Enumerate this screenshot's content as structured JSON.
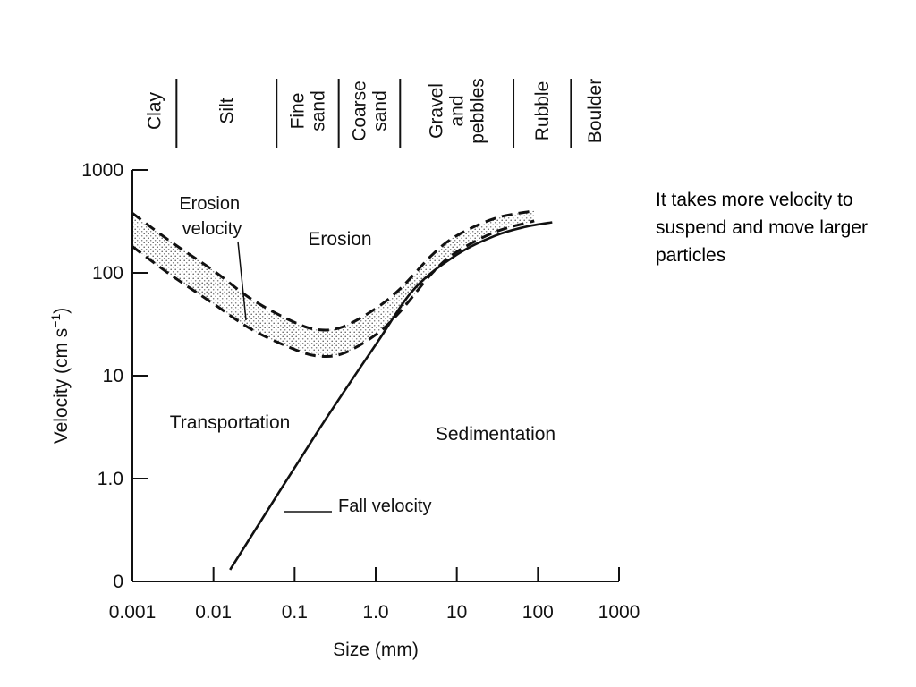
{
  "note": "It takes more velocity to suspend and move larger particles",
  "chart_data": {
    "type": "line",
    "title": "",
    "xlabel": "Size (mm)",
    "ylabel": "Velocity  (cm s",
    "ylabel_sup": "−1",
    "ylabel_close": ")",
    "x_scale": "log",
    "y_scale": "log",
    "xlim": [
      0.001,
      1000
    ],
    "ylim": [
      0,
      1000
    ],
    "x_ticks": [
      0.001,
      0.01,
      0.1,
      1.0,
      10,
      100,
      1000
    ],
    "x_tick_labels": [
      "0.001",
      "0.01",
      "0.1",
      "1.0",
      "10",
      "100",
      "1000"
    ],
    "y_ticks": [
      0.1,
      1,
      10,
      100,
      1000
    ],
    "y_tick_labels": [
      "0",
      "1.0",
      "10",
      "100",
      "1000"
    ],
    "grid": false,
    "series": [
      {
        "name": "Erosion velocity",
        "style": "dashed",
        "role": "upper",
        "x": [
          0.001,
          0.003,
          0.01,
          0.03,
          0.1,
          0.2,
          0.4,
          1,
          2,
          5,
          10,
          30,
          90
        ],
        "y": [
          380,
          200,
          105,
          55,
          33,
          28,
          30,
          45,
          70,
          150,
          230,
          340,
          400
        ]
      },
      {
        "name": "Erosion velocity",
        "style": "dashed",
        "role": "lower",
        "x": [
          0.001,
          0.003,
          0.01,
          0.03,
          0.1,
          0.2,
          0.4,
          1,
          2,
          5,
          10,
          30,
          90
        ],
        "y": [
          180,
          95,
          50,
          28,
          18,
          15.5,
          16.5,
          25,
          42,
          100,
          160,
          250,
          320
        ]
      },
      {
        "name": "Fall velocity",
        "style": "solid",
        "x": [
          0.016,
          0.2,
          1,
          3,
          10,
          30,
          70,
          150
        ],
        "y": [
          0.13,
          3,
          20,
          70,
          150,
          230,
          280,
          310
        ]
      }
    ],
    "size_classes": [
      {
        "lines": [
          "Clay"
        ],
        "from": 0.001,
        "to": 0.0035
      },
      {
        "lines": [
          "Silt"
        ],
        "from": 0.0035,
        "to": 0.06
      },
      {
        "lines": [
          "Fine",
          "sand"
        ],
        "from": 0.06,
        "to": 0.35
      },
      {
        "lines": [
          "Coarse",
          "sand"
        ],
        "from": 0.35,
        "to": 2
      },
      {
        "lines": [
          "Gravel",
          "and",
          "pebbles"
        ],
        "from": 2,
        "to": 50
      },
      {
        "lines": [
          "Rubble"
        ],
        "from": 50,
        "to": 256
      },
      {
        "lines": [
          "Boulder"
        ],
        "from": 256,
        "to": 1000
      }
    ],
    "annotations": {
      "erosion_velocity_label": [
        "Erosion",
        "velocity"
      ],
      "erosion": "Erosion",
      "transportation": "Transportation",
      "sedimentation": "Sedimentation",
      "fall_velocity": "Fall velocity"
    }
  }
}
